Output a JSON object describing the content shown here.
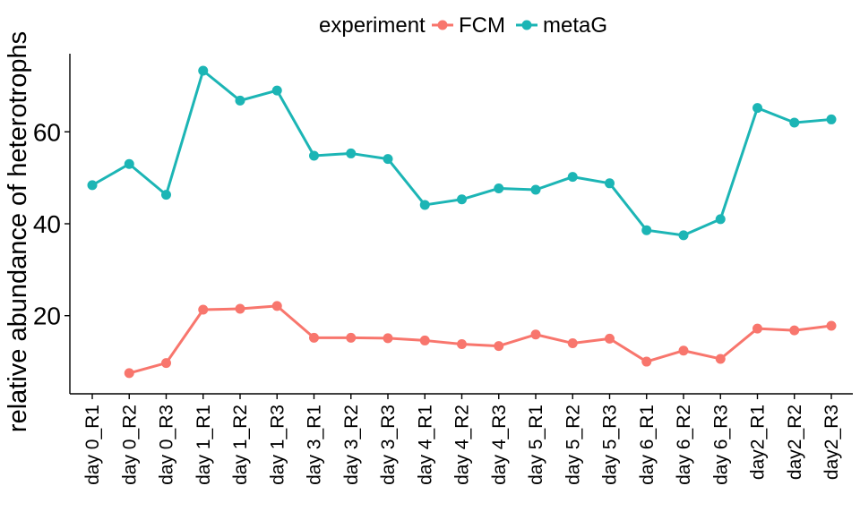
{
  "chart_data": {
    "type": "line",
    "title": "",
    "xlabel": "",
    "ylabel": "relative abundance of heterotrophs",
    "ylim": [
      3,
      77
    ],
    "yticks": [
      20,
      40,
      60
    ],
    "grid": false,
    "legend": {
      "title": "experiment",
      "placement": "top"
    },
    "categories": [
      "day 0_R1",
      "day 0_R2",
      "day 0_R3",
      "day 1_R1",
      "day 1_R2",
      "day 1_R3",
      "day 3_R1",
      "day 3_R2",
      "day 3_R3",
      "day 4_R1",
      "day 4_R2",
      "day 4_R3",
      "day 5_R1",
      "day 5_R2",
      "day 5_R3",
      "day 6_R1",
      "day 6_R2",
      "day 6_R3",
      "day2_R1",
      "day2_R2",
      "day2_R3"
    ],
    "series": [
      {
        "name": "FCM",
        "color": "#F8766D",
        "values": [
          null,
          7.5,
          9.7,
          21.3,
          21.5,
          22.1,
          15.2,
          15.2,
          15.1,
          14.6,
          13.8,
          13.4,
          15.9,
          14.0,
          15.0,
          10.0,
          12.4,
          10.6,
          17.2,
          16.8,
          17.8
        ]
      },
      {
        "name": "metaG",
        "color": "#1CB5B5",
        "values": [
          48.4,
          53.0,
          46.3,
          73.3,
          66.8,
          69.0,
          54.8,
          55.3,
          54.1,
          44.1,
          45.3,
          47.7,
          47.4,
          50.2,
          48.8,
          38.6,
          37.5,
          41.0,
          65.2,
          62.0,
          62.7
        ]
      }
    ]
  }
}
